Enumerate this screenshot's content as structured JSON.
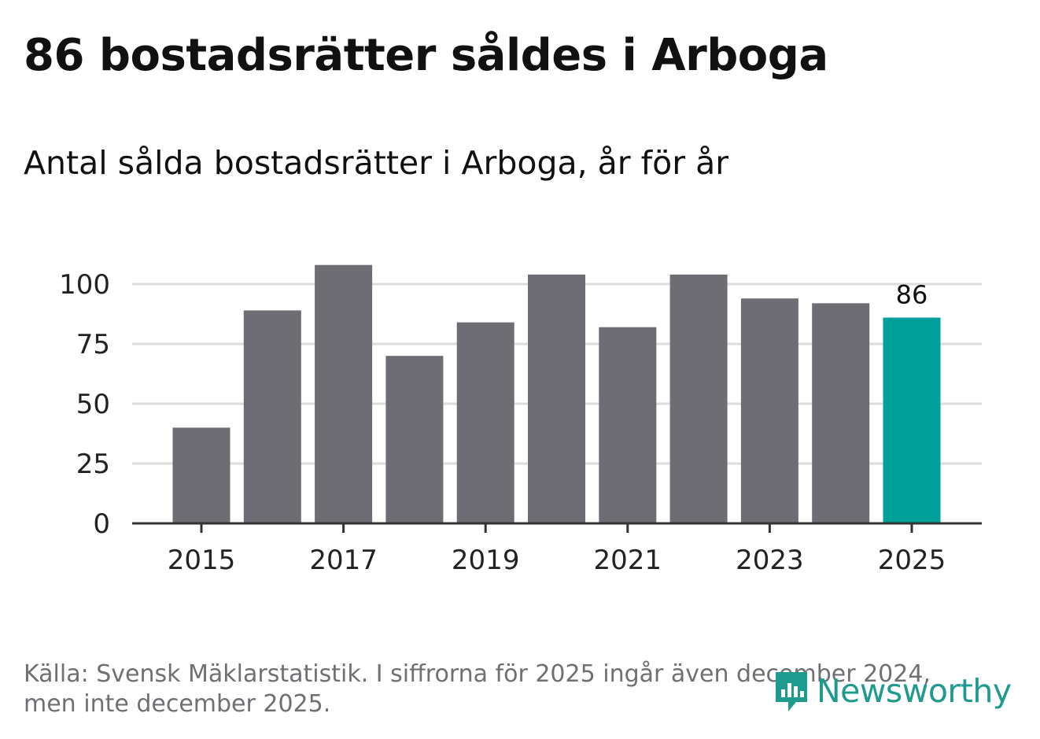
{
  "header": {
    "title": "86 bostadsrätter såldes i Arboga",
    "subtitle": "Antal sålda bostadsrätter i Arboga, år för år"
  },
  "footer": {
    "source_line1": "Källa: Svensk Mäklarstatistik. I siffrorna för 2025 ingår även december 2024,",
    "source_line2": "men inte december 2025."
  },
  "logo": {
    "text": "Newsworthy",
    "icon": "newsworthy-logo-icon"
  },
  "colors": {
    "bar": "#6e6d73",
    "highlight": "#00a19a",
    "grid": "#dcdcdc",
    "axis": "#333333",
    "tick_text": "#222222"
  },
  "chart_data": {
    "type": "bar",
    "title": "Antal sålda bostadsrätter i Arboga, år för år",
    "xlabel": "",
    "ylabel": "",
    "categories": [
      "2015",
      "2016",
      "2017",
      "2018",
      "2019",
      "2020",
      "2021",
      "2022",
      "2023",
      "2024",
      "2025"
    ],
    "values": [
      40,
      89,
      108,
      70,
      84,
      104,
      82,
      104,
      94,
      92,
      86
    ],
    "highlight_index": 10,
    "data_label": "86",
    "x_tick_labels": [
      "2015",
      "2017",
      "2019",
      "2021",
      "2023",
      "2025"
    ],
    "y_ticks": [
      0,
      25,
      50,
      75,
      100
    ],
    "y_tick_labels": [
      "0",
      "25",
      "50",
      "75",
      "100"
    ],
    "ylim": [
      0,
      110
    ],
    "grid": true
  }
}
